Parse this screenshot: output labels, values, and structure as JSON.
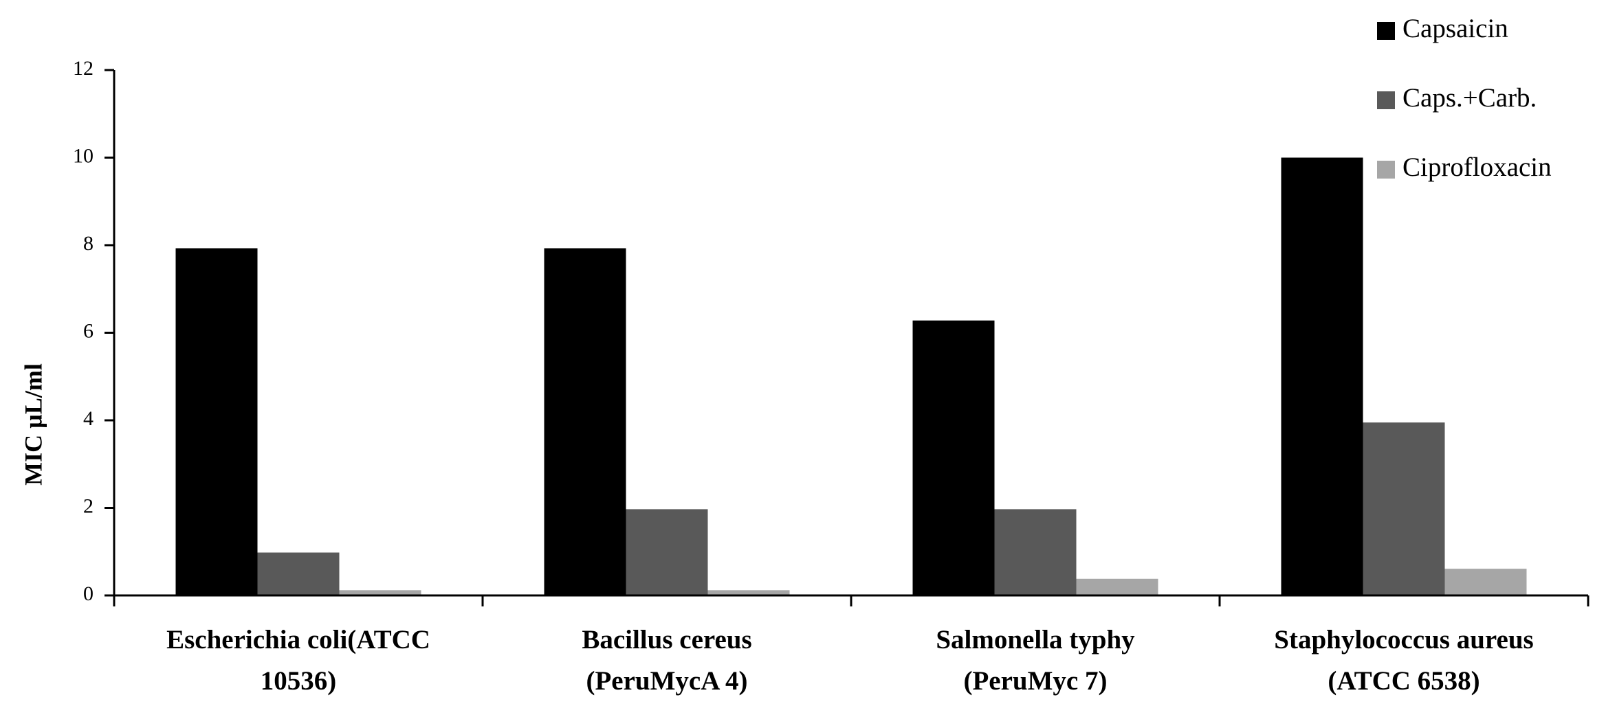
{
  "chart_data": {
    "type": "bar",
    "categories": [
      [
        "Escherichia coli(ATCC",
        "10536)"
      ],
      [
        "Bacillus cereus",
        "(PeruMycA 4)"
      ],
      [
        "Salmonella typhy",
        "(PeruMyc 7)"
      ],
      [
        "Staphylococcus aureus",
        "(ATCC 6538)"
      ]
    ],
    "series": [
      {
        "name": "Capsaicin",
        "color": "#000000",
        "values": [
          7.93,
          7.93,
          6.28,
          10
        ]
      },
      {
        "name": "Caps.+Carb.",
        "color": "#595959",
        "values": [
          0.98,
          1.97,
          1.97,
          3.95
        ]
      },
      {
        "name": "Ciprofloxacin",
        "color": "#a6a6a6",
        "values": [
          0.12,
          0.12,
          0.38,
          0.61
        ]
      }
    ],
    "y_label": "MIC µL/ml",
    "ylim": [
      0,
      12
    ],
    "yticks": [
      0,
      2,
      4,
      6,
      8,
      10,
      12
    ],
    "legend": "top-right"
  }
}
